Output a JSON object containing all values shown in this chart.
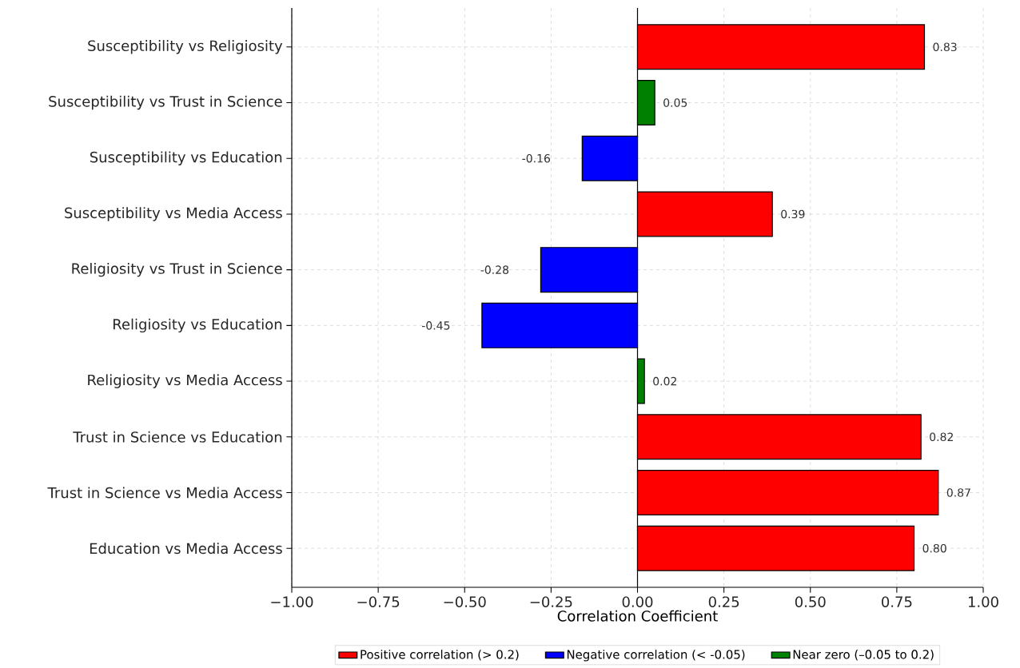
{
  "chart_data": {
    "type": "bar",
    "orientation": "horizontal",
    "categories": [
      "Susceptibility vs Religiosity",
      "Susceptibility vs Trust in Science",
      "Susceptibility vs Education",
      "Susceptibility vs Media Access",
      "Religiosity vs Trust in Science",
      "Religiosity vs Education",
      "Religiosity vs Media Access",
      "Trust in Science vs Education",
      "Trust in Science vs Media Access",
      "Education vs Media Access"
    ],
    "series": [
      {
        "name": "Positive correlation (> 0.2)",
        "color": "#ff0000",
        "values": [
          0.83,
          null,
          null,
          0.39,
          null,
          null,
          null,
          0.82,
          0.87,
          0.8
        ],
        "value_labels": [
          "0.83",
          null,
          null,
          "0.39",
          null,
          null,
          null,
          "0.82",
          "0.87",
          "0.80"
        ]
      },
      {
        "name": "Negative correlation (< -0.05)",
        "color": "#0000ff",
        "values": [
          null,
          null,
          -0.16,
          null,
          -0.28,
          -0.45,
          null,
          null,
          null,
          null
        ],
        "value_labels": [
          null,
          null,
          "-0.16",
          null,
          "-0.28",
          "-0.45",
          null,
          null,
          null,
          null
        ]
      },
      {
        "name": "Near zero (–0.05 to 0.2)",
        "color": "#008000",
        "values": [
          null,
          0.05,
          null,
          null,
          null,
          null,
          0.02,
          null,
          null,
          null
        ],
        "value_labels": [
          null,
          "0.05",
          null,
          null,
          null,
          null,
          "0.02",
          null,
          null,
          null
        ]
      }
    ],
    "xlabel": "Correlation Coefficient",
    "xlim": [
      -1,
      1
    ],
    "xticks": [
      {
        "value": -1,
        "label": "−1.00"
      },
      {
        "value": -0.75,
        "label": "−0.75"
      },
      {
        "value": -0.5,
        "label": "−0.50"
      },
      {
        "value": -0.25,
        "label": "−0.25"
      },
      {
        "value": 0,
        "label": "0.00"
      },
      {
        "value": 0.25,
        "label": "0.25"
      },
      {
        "value": 0.5,
        "label": "0.50"
      },
      {
        "value": 0.75,
        "label": "0.75"
      },
      {
        "value": 1,
        "label": "1.00"
      }
    ],
    "ref_lines": [
      {
        "axis": "x",
        "value": 0,
        "color": "#000000"
      }
    ],
    "grid": true,
    "legend": "bottom"
  }
}
